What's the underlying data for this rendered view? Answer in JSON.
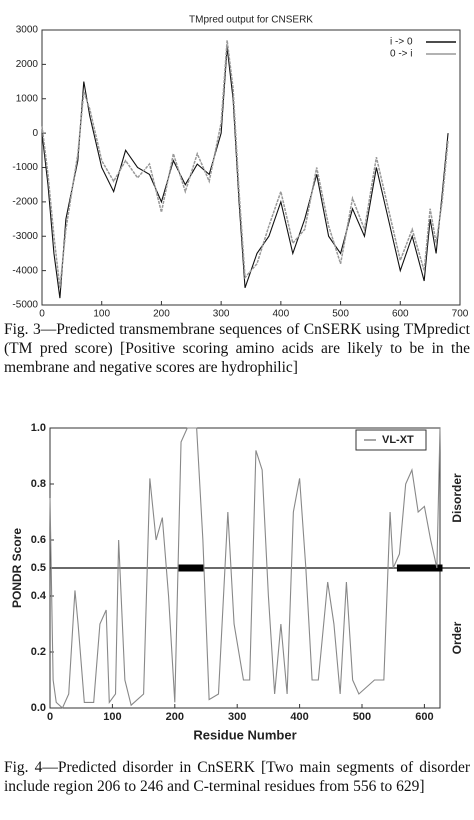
{
  "chart_data": [
    {
      "type": "line",
      "title": "TMpred output for CNSERK",
      "x": [
        0,
        10,
        20,
        30,
        40,
        60,
        70,
        80,
        100,
        120,
        140,
        160,
        180,
        200,
        220,
        240,
        260,
        280,
        300,
        310,
        320,
        330,
        340,
        360,
        380,
        400,
        420,
        440,
        460,
        480,
        500,
        520,
        540,
        560,
        580,
        600,
        620,
        640,
        650,
        660,
        670,
        680
      ],
      "series": [
        {
          "name": "i -> 0",
          "color": "#111111",
          "values": [
            0,
            -1500,
            -3500,
            -4800,
            -2500,
            -800,
            1500,
            500,
            -1000,
            -1700,
            -500,
            -1000,
            -1200,
            -2000,
            -800,
            -1500,
            -900,
            -1200,
            0,
            2500,
            1000,
            -2000,
            -4500,
            -3500,
            -3000,
            -2000,
            -3500,
            -2500,
            -1200,
            -3000,
            -3500,
            -2200,
            -3000,
            -1000,
            -2500,
            -4000,
            -3000,
            -4300,
            -2500,
            -3500,
            -1800,
            0
          ]
        },
        {
          "name": "0 -> i",
          "color": "#999999",
          "values": [
            200,
            -1200,
            -3000,
            -4500,
            -2800,
            -600,
            1200,
            700,
            -800,
            -1400,
            -800,
            -1300,
            -900,
            -2300,
            -600,
            -1700,
            -600,
            -1400,
            300,
            2700,
            1300,
            -1700,
            -4200,
            -3800,
            -2700,
            -1700,
            -3200,
            -2800,
            -1000,
            -2700,
            -3800,
            -1900,
            -2800,
            -700,
            -2200,
            -3700,
            -2800,
            -4000,
            -2200,
            -3200,
            -2000,
            -200
          ]
        }
      ],
      "xlim": [
        0,
        700
      ],
      "xticks": [
        0,
        100,
        200,
        300,
        400,
        500,
        600,
        700
      ],
      "ylim": [
        -5000,
        3000
      ],
      "yticks": [
        -5000,
        -4000,
        -3000,
        -2000,
        -1000,
        0,
        1000,
        2000,
        3000
      ]
    },
    {
      "type": "line",
      "x_label": "Residue Number",
      "y_label": "PONDR Score",
      "x": [
        0,
        5,
        10,
        20,
        30,
        40,
        45,
        55,
        70,
        80,
        90,
        95,
        105,
        110,
        120,
        130,
        150,
        160,
        170,
        180,
        190,
        200,
        210,
        220,
        235,
        245,
        255,
        270,
        285,
        295,
        310,
        320,
        330,
        340,
        350,
        360,
        370,
        380,
        390,
        400,
        410,
        420,
        430,
        445,
        455,
        465,
        475,
        485,
        495,
        520,
        535,
        545,
        550,
        560,
        570,
        580,
        590,
        600,
        610,
        620,
        625
      ],
      "series": [
        {
          "name": "VL-XT",
          "color": "#888888",
          "values": [
            0.75,
            0.1,
            0.02,
            0.0,
            0.05,
            0.42,
            0.3,
            0.02,
            0.02,
            0.3,
            0.35,
            0.02,
            0.05,
            0.6,
            0.1,
            0.01,
            0.05,
            0.82,
            0.6,
            0.68,
            0.4,
            0.02,
            0.95,
            1.0,
            1.0,
            0.6,
            0.03,
            0.05,
            0.7,
            0.3,
            0.1,
            0.1,
            0.92,
            0.85,
            0.4,
            0.05,
            0.3,
            0.05,
            0.7,
            0.82,
            0.5,
            0.1,
            0.1,
            0.45,
            0.3,
            0.05,
            0.45,
            0.1,
            0.05,
            0.1,
            0.1,
            0.7,
            0.5,
            0.55,
            0.8,
            0.85,
            0.7,
            0.72,
            0.6,
            0.5,
            1.0
          ]
        }
      ],
      "threshold": 0.5,
      "regions": [
        [
          206,
          246
        ],
        [
          556,
          629
        ]
      ],
      "annotations": [
        "Disorder",
        "Order"
      ],
      "xlim": [
        0,
        625
      ],
      "xticks": [
        0,
        100,
        200,
        300,
        400,
        500,
        600
      ],
      "ylim": [
        0,
        1
      ],
      "yticks": [
        {
          "value": 0,
          "label": "0.0"
        },
        0.2,
        0.4,
        0.5,
        0.6,
        0.8,
        {
          "value": 1,
          "label": "1.0"
        }
      ]
    }
  ],
  "captions": [
    "Fig. 3—Predicted transmembrane sequences of CnSERK using TMpredict (TM pred score) [Positive scoring amino acids are likely to be in the membrane and negative scores are hydrophilic]",
    "Fig. 4—Predicted disorder in CnSERK [Two main segments of disorder include region 206 to 246 and C-terminal residues from 556 to 629]"
  ]
}
